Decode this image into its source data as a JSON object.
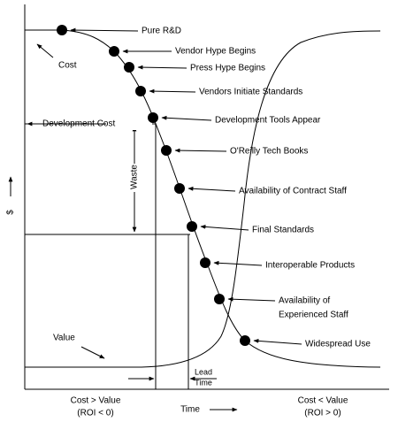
{
  "milestones": [
    {
      "lines": [
        "Pure R&D"
      ]
    },
    {
      "lines": [
        "Vendor Hype Begins"
      ]
    },
    {
      "lines": [
        "Press Hype Begins"
      ]
    },
    {
      "lines": [
        "Vendors Initiate Standards"
      ]
    },
    {
      "lines": [
        "Development Tools Appear"
      ]
    },
    {
      "lines": [
        "O'Reilly Tech Books"
      ]
    },
    {
      "lines": [
        "Availability of Contract Staff"
      ]
    },
    {
      "lines": [
        "Final Standards"
      ]
    },
    {
      "lines": [
        "Interoperable Products"
      ]
    },
    {
      "lines": [
        "Availability of",
        "Experienced Staff"
      ]
    },
    {
      "lines": [
        "Widespread Use"
      ]
    }
  ],
  "labels": {
    "cost": "Cost",
    "value": "Value",
    "development_cost": "Development Cost",
    "waste": "Waste",
    "lead_time": [
      "Lead",
      "Time"
    ],
    "y_axis": "$",
    "x_axis": "Time",
    "left_bottom": [
      "Cost > Value",
      "(ROI < 0)"
    ],
    "right_bottom": [
      "Cost < Value",
      "(ROI > 0)"
    ]
  }
}
